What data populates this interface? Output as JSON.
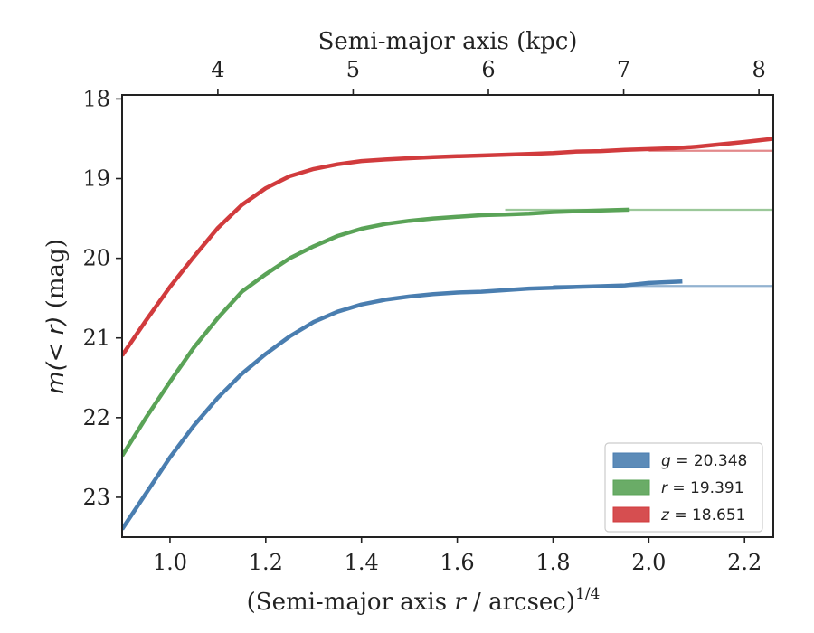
{
  "chart_data": {
    "type": "line",
    "title": "",
    "xlabel": "(Semi-major axis r / arcsec)^1/4",
    "xlabel_main": "(Semi-major axis ",
    "xlabel_var": "r",
    "xlabel_unit": " / arcsec)",
    "xlabel_sup": "1/4",
    "ylabel": "m(< r) (mag)",
    "ylabel_math": "m(< r)",
    "ylabel_unit": " (mag)",
    "top_xlabel": "Semi-major axis (kpc)",
    "xlim": [
      0.9,
      2.26
    ],
    "ylim": [
      23.5,
      17.95
    ],
    "y_inverted": true,
    "xticks": [
      1.0,
      1.2,
      1.4,
      1.6,
      1.8,
      2.0,
      2.2
    ],
    "xtick_labels": [
      "1.0",
      "1.2",
      "1.4",
      "1.6",
      "1.8",
      "2.0",
      "2.2"
    ],
    "yticks": [
      18,
      19,
      20,
      21,
      22,
      23
    ],
    "ytick_labels": [
      "18",
      "19",
      "20",
      "21",
      "22",
      "23"
    ],
    "top_ticks_x": [
      1.1,
      1.3825,
      1.665,
      1.9475,
      2.23
    ],
    "top_tick_labels": [
      "4",
      "5",
      "6",
      "7",
      "8"
    ],
    "grid": false,
    "legend_position": "lower-right",
    "series": [
      {
        "name": "g = 20.348",
        "legend_var": "g",
        "legend_value": "= 20.348",
        "color": "#4a7eb0",
        "asymptote": 20.348,
        "x": [
          0.9,
          0.95,
          1.0,
          1.05,
          1.1,
          1.15,
          1.2,
          1.25,
          1.3,
          1.35,
          1.4,
          1.45,
          1.5,
          1.55,
          1.6,
          1.65,
          1.7,
          1.75,
          1.8,
          1.85,
          1.9,
          1.95,
          2.0,
          2.07
        ],
        "y": [
          23.4,
          22.95,
          22.5,
          22.1,
          21.75,
          21.45,
          21.2,
          20.98,
          20.8,
          20.67,
          20.58,
          20.52,
          20.48,
          20.45,
          20.43,
          20.42,
          20.4,
          20.38,
          20.37,
          20.36,
          20.35,
          20.34,
          20.31,
          20.29
        ]
      },
      {
        "name": "r = 19.391",
        "legend_var": "r",
        "legend_value": "= 19.391",
        "color": "#5aa357",
        "asymptote": 19.391,
        "x": [
          0.9,
          0.95,
          1.0,
          1.05,
          1.1,
          1.15,
          1.2,
          1.25,
          1.3,
          1.35,
          1.4,
          1.45,
          1.5,
          1.55,
          1.6,
          1.65,
          1.7,
          1.75,
          1.8,
          1.85,
          1.9,
          1.96
        ],
        "y": [
          22.48,
          22.0,
          21.55,
          21.12,
          20.75,
          20.42,
          20.2,
          20.0,
          19.85,
          19.72,
          19.63,
          19.57,
          19.53,
          19.5,
          19.48,
          19.46,
          19.45,
          19.44,
          19.42,
          19.41,
          19.4,
          19.39
        ]
      },
      {
        "name": "z = 18.651",
        "legend_var": "z",
        "legend_value": "= 18.651",
        "color": "#d13b3d",
        "asymptote": 18.651,
        "x": [
          0.9,
          0.95,
          1.0,
          1.05,
          1.1,
          1.15,
          1.2,
          1.25,
          1.3,
          1.35,
          1.4,
          1.45,
          1.5,
          1.55,
          1.6,
          1.65,
          1.7,
          1.75,
          1.8,
          1.85,
          1.9,
          1.95,
          2.0,
          2.05,
          2.1,
          2.15,
          2.2,
          2.26
        ],
        "y": [
          21.22,
          20.78,
          20.36,
          19.98,
          19.62,
          19.33,
          19.12,
          18.97,
          18.88,
          18.82,
          18.78,
          18.76,
          18.745,
          18.73,
          18.72,
          18.71,
          18.7,
          18.69,
          18.68,
          18.66,
          18.655,
          18.64,
          18.63,
          18.62,
          18.6,
          18.57,
          18.54,
          18.5
        ]
      }
    ]
  }
}
